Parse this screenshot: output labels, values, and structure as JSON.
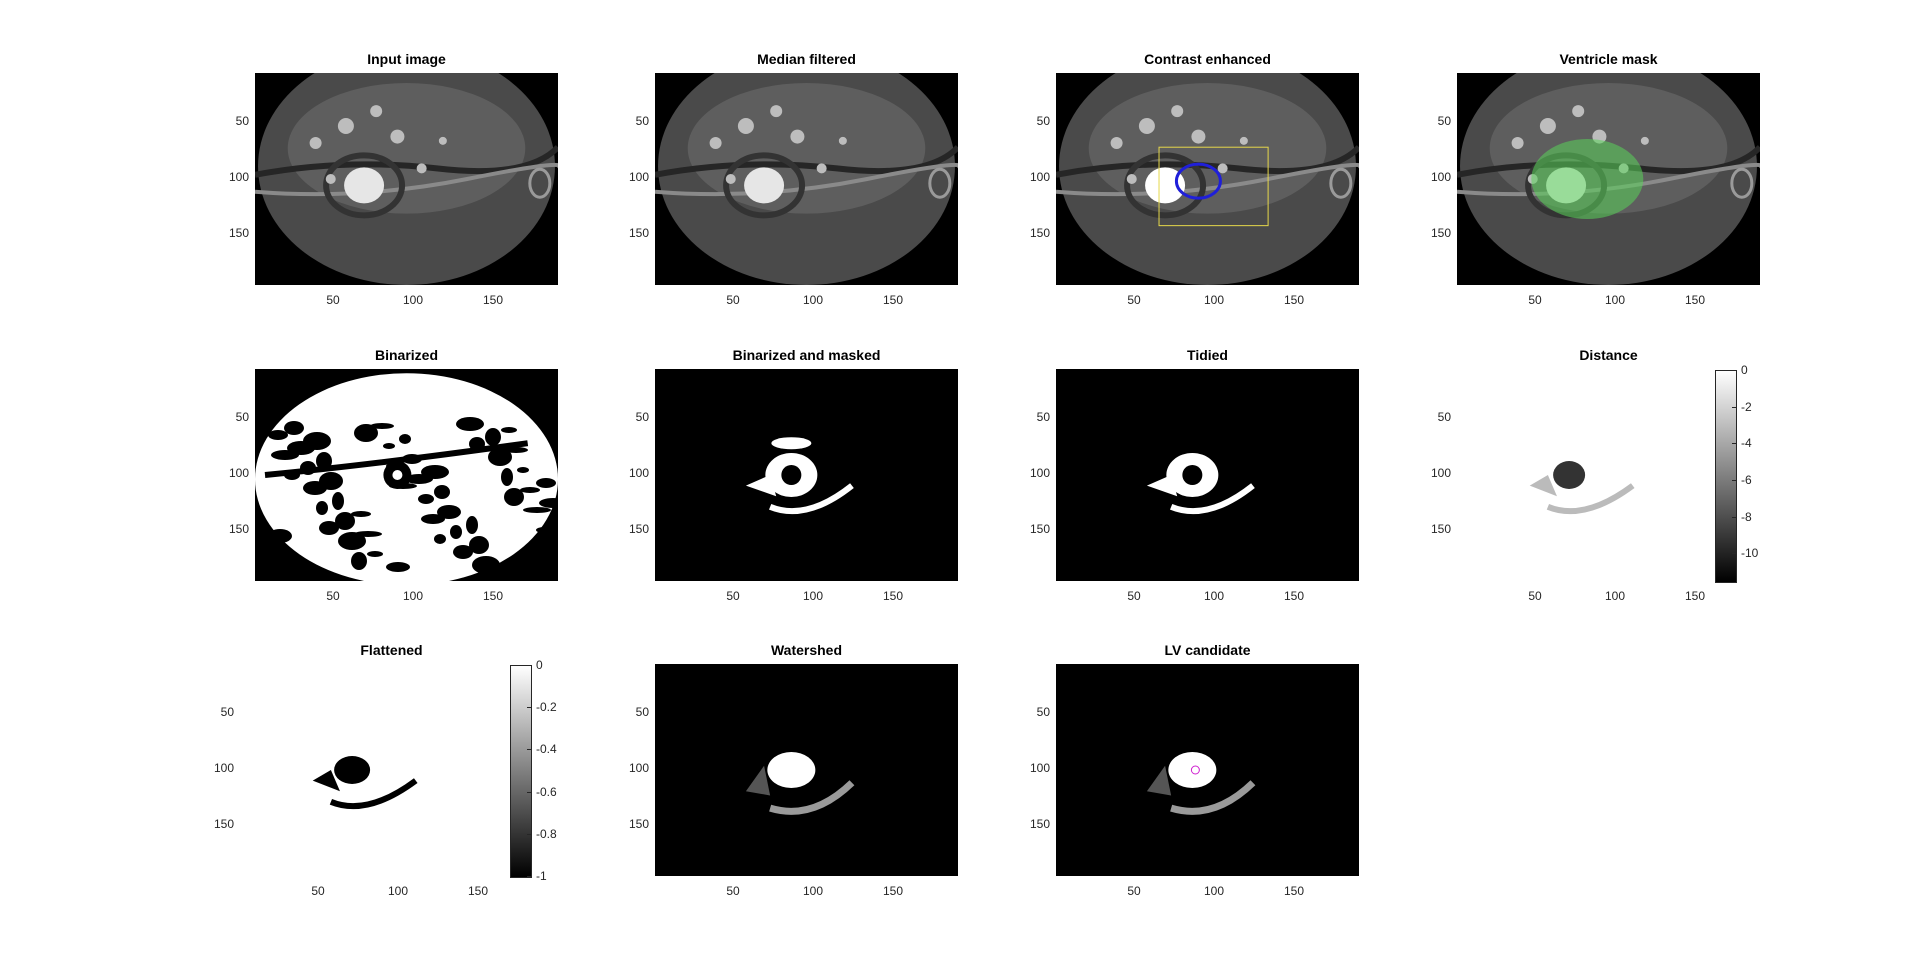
{
  "figure": {
    "panels": [
      {
        "id": "input",
        "title": "Input image",
        "style": "mri"
      },
      {
        "id": "median",
        "title": "Median filtered",
        "style": "mri-smooth"
      },
      {
        "id": "contrast",
        "title": "Contrast enhanced",
        "style": "mri-contrast"
      },
      {
        "id": "ventricle",
        "title": "Ventricle mask",
        "style": "mri-green"
      },
      {
        "id": "binarized",
        "title": "Binarized",
        "style": "binary"
      },
      {
        "id": "masked",
        "title": "Binarized and masked",
        "style": "masked"
      },
      {
        "id": "tidied",
        "title": "Tidied",
        "style": "tidied"
      },
      {
        "id": "distance",
        "title": "Distance",
        "style": "distance",
        "colorbar": [
          "0",
          "-2",
          "-4",
          "-6",
          "-8",
          "-10"
        ]
      },
      {
        "id": "flattened",
        "title": "Flattened",
        "style": "flattened",
        "colorbar": [
          "0",
          "-0.2",
          "-0.4",
          "-0.6",
          "-0.8",
          "-1"
        ]
      },
      {
        "id": "watershed",
        "title": "Watershed",
        "style": "watershed"
      },
      {
        "id": "lv",
        "title": "LV candidate",
        "style": "lv"
      }
    ],
    "axes": {
      "x_ticks": [
        "50",
        "100",
        "150"
      ],
      "y_ticks": [
        "50",
        "100",
        "150"
      ]
    },
    "colors": {
      "contour": "#1f1fd9",
      "bbox": "#e6d84a",
      "mask_overlay": "#5ad45a",
      "marker": "#d020d0"
    }
  }
}
